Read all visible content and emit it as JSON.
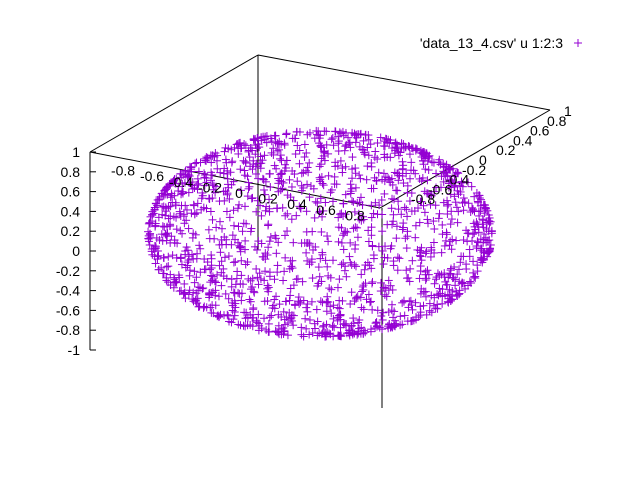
{
  "chart_data": {
    "type": "scatter",
    "title": "",
    "projection": "3d",
    "grid": false,
    "legend_position": "top-right",
    "marker": "plus",
    "series": [
      {
        "name": "'data_13_4.csv' u 1:2:3",
        "color": "#9400d3",
        "distribution": "points on the surface of the unit sphere (x^2 + y^2 + z^2 = 1)",
        "x": [
          0.0,
          0.5,
          -0.5,
          0.707,
          -0.707,
          0.0,
          0.0,
          0.866,
          -0.866,
          0.0,
          0.0,
          1.0,
          -1.0,
          0.354,
          -0.354,
          0.612,
          -0.612
        ],
        "y": [
          0.0,
          0.5,
          -0.5,
          0.0,
          0.0,
          0.707,
          -0.707,
          0.0,
          0.0,
          0.866,
          -0.866,
          0.0,
          0.0,
          0.612,
          -0.612,
          0.354,
          -0.354
        ],
        "z": [
          1.0,
          0.707,
          -0.707,
          0.707,
          -0.707,
          0.707,
          -0.707,
          0.5,
          -0.5,
          0.5,
          -0.5,
          0.0,
          0.0,
          0.707,
          0.707,
          -0.707,
          -0.707
        ]
      }
    ],
    "axes": {
      "x": {
        "range": [
          -1,
          1
        ],
        "ticks": [
          "-1",
          "-0.8",
          "-0.6",
          "-0.4",
          "-0.2",
          "0",
          "0.2",
          "0.4",
          "0.6",
          "0.8",
          "1"
        ]
      },
      "y": {
        "range": [
          -1,
          1
        ],
        "ticks": [
          "-1",
          "-0.8",
          "-0.6",
          "-0.4",
          "-0.2",
          "0",
          "0.2",
          "0.4",
          "0.6",
          "0.8",
          "1"
        ]
      },
      "z": {
        "range": [
          -1,
          1
        ],
        "ticks": [
          "-1",
          "-0.8",
          "-0.6",
          "-0.4",
          "-0.2",
          "0",
          "0.2",
          "0.4",
          "0.6",
          "0.8",
          "1"
        ]
      }
    }
  }
}
